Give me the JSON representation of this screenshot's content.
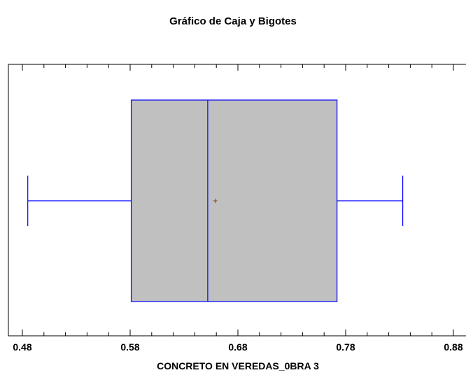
{
  "chart_data": {
    "type": "boxplot",
    "title": "Gráfico de Caja y Bigotes",
    "xlabel": "CONCRETO EN VEREDAS_0BRA 3",
    "ylabel": "",
    "xlim": [
      0.46,
      0.9
    ],
    "x_ticks": [
      "0.48",
      "0.58",
      "0.68",
      "0.78",
      "0.88"
    ],
    "x_tick_values": [
      0.48,
      0.58,
      0.68,
      0.78,
      0.88
    ],
    "grid": false,
    "box": {
      "min": 0.485,
      "q1": 0.581,
      "median": 0.652,
      "mean": 0.659,
      "q3": 0.772,
      "max": 0.833
    },
    "colors": {
      "box_fill": "#c0c0c0",
      "box_stroke": "#0000ff",
      "mean_marker": "#8b3a1a",
      "axis": "#000000"
    }
  }
}
